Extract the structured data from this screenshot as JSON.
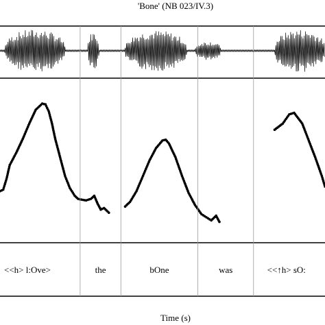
{
  "chart_data": {
    "type": "line",
    "title": "'Bone' (NB 023/IV.3)",
    "xlabel": "Time (s)",
    "ylabel": "",
    "panels": [
      "waveform",
      "pitch",
      "transcription"
    ],
    "boundaries": [
      0.0,
      0.2466,
      0.3719,
      0.6089,
      0.7801,
      1.0
    ],
    "intervals": [
      {
        "label": "<<h> l:Ove>",
        "start": 0.0,
        "end": 0.2466
      },
      {
        "label": "the",
        "start": 0.2466,
        "end": 0.3719
      },
      {
        "label": "bOne",
        "start": 0.3719,
        "end": 0.6089
      },
      {
        "label": "was",
        "start": 0.6089,
        "end": 0.7801
      },
      {
        "label": "<<↑h> sO:",
        "start": 0.7801,
        "end": 1.0
      }
    ],
    "waveform_segments": [
      {
        "start": 0.015,
        "end": 0.2,
        "amplitude": 0.9
      },
      {
        "start": 0.27,
        "end": 0.305,
        "amplitude": 0.8
      },
      {
        "start": 0.385,
        "end": 0.575,
        "amplitude": 0.85
      },
      {
        "start": 0.6,
        "end": 0.68,
        "amplitude": 0.4
      },
      {
        "start": 0.845,
        "end": 1.0,
        "amplitude": 0.9
      }
    ],
    "series": [
      {
        "x": [
          0.0,
          0.01,
          0.02,
          0.03,
          0.05,
          0.07,
          0.09,
          0.11,
          0.13,
          0.14,
          0.15,
          0.16,
          0.17,
          0.185,
          0.2,
          0.215,
          0.23,
          0.24,
          0.25,
          0.265,
          0.28,
          0.29,
          0.3,
          0.31,
          0.32,
          0.335
        ],
        "y": [
          0.3,
          0.31,
          0.38,
          0.47,
          0.55,
          0.64,
          0.74,
          0.83,
          0.87,
          0.865,
          0.82,
          0.74,
          0.64,
          0.52,
          0.4,
          0.32,
          0.27,
          0.25,
          0.245,
          0.24,
          0.25,
          0.27,
          0.22,
          0.18,
          0.19,
          0.16
        ]
      },
      {
        "x": [
          0.385,
          0.4,
          0.42,
          0.44,
          0.46,
          0.48,
          0.5,
          0.51,
          0.52,
          0.54,
          0.56,
          0.58,
          0.6,
          0.62,
          0.635,
          0.65,
          0.665,
          0.675
        ],
        "y": [
          0.2,
          0.23,
          0.3,
          0.4,
          0.5,
          0.58,
          0.63,
          0.635,
          0.61,
          0.52,
          0.4,
          0.29,
          0.21,
          0.15,
          0.13,
          0.11,
          0.14,
          0.1
        ]
      },
      {
        "x": [
          0.845,
          0.87,
          0.89,
          0.905,
          0.93,
          0.95,
          0.97,
          0.99,
          1.0
        ],
        "y": [
          0.7,
          0.74,
          0.8,
          0.81,
          0.74,
          0.63,
          0.52,
          0.4,
          0.33
        ]
      }
    ]
  }
}
